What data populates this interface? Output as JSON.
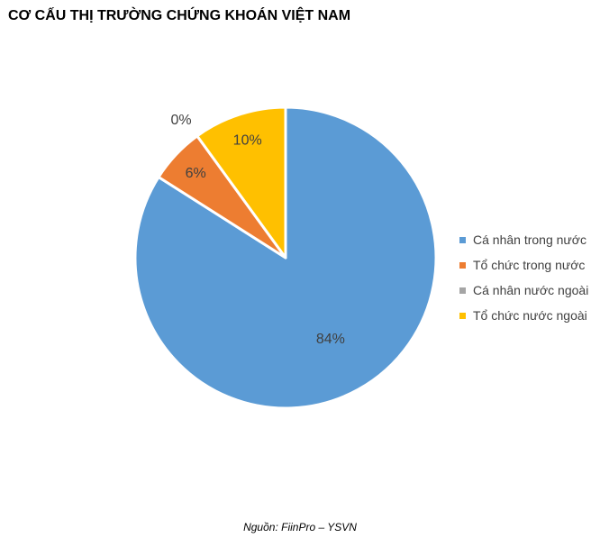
{
  "chart_data": {
    "type": "pie",
    "title": "CƠ CẤU THỊ TRƯỜNG CHỨNG KHOÁN VIỆT NAM",
    "categories": [
      "Cá nhân trong nước",
      "Tổ chức trong nước",
      "Cá nhân nước ngoài",
      "Tổ chức nước ngoài"
    ],
    "values": [
      84,
      6,
      0,
      10
    ],
    "data_labels": [
      "84%",
      "6%",
      "0%",
      "10%"
    ],
    "colors": [
      "#5B9BD5",
      "#ED7D31",
      "#A5A5A5",
      "#FFC000"
    ],
    "legend_position": "right"
  },
  "source_note": "Nguồn: FiinPro – YSVN"
}
